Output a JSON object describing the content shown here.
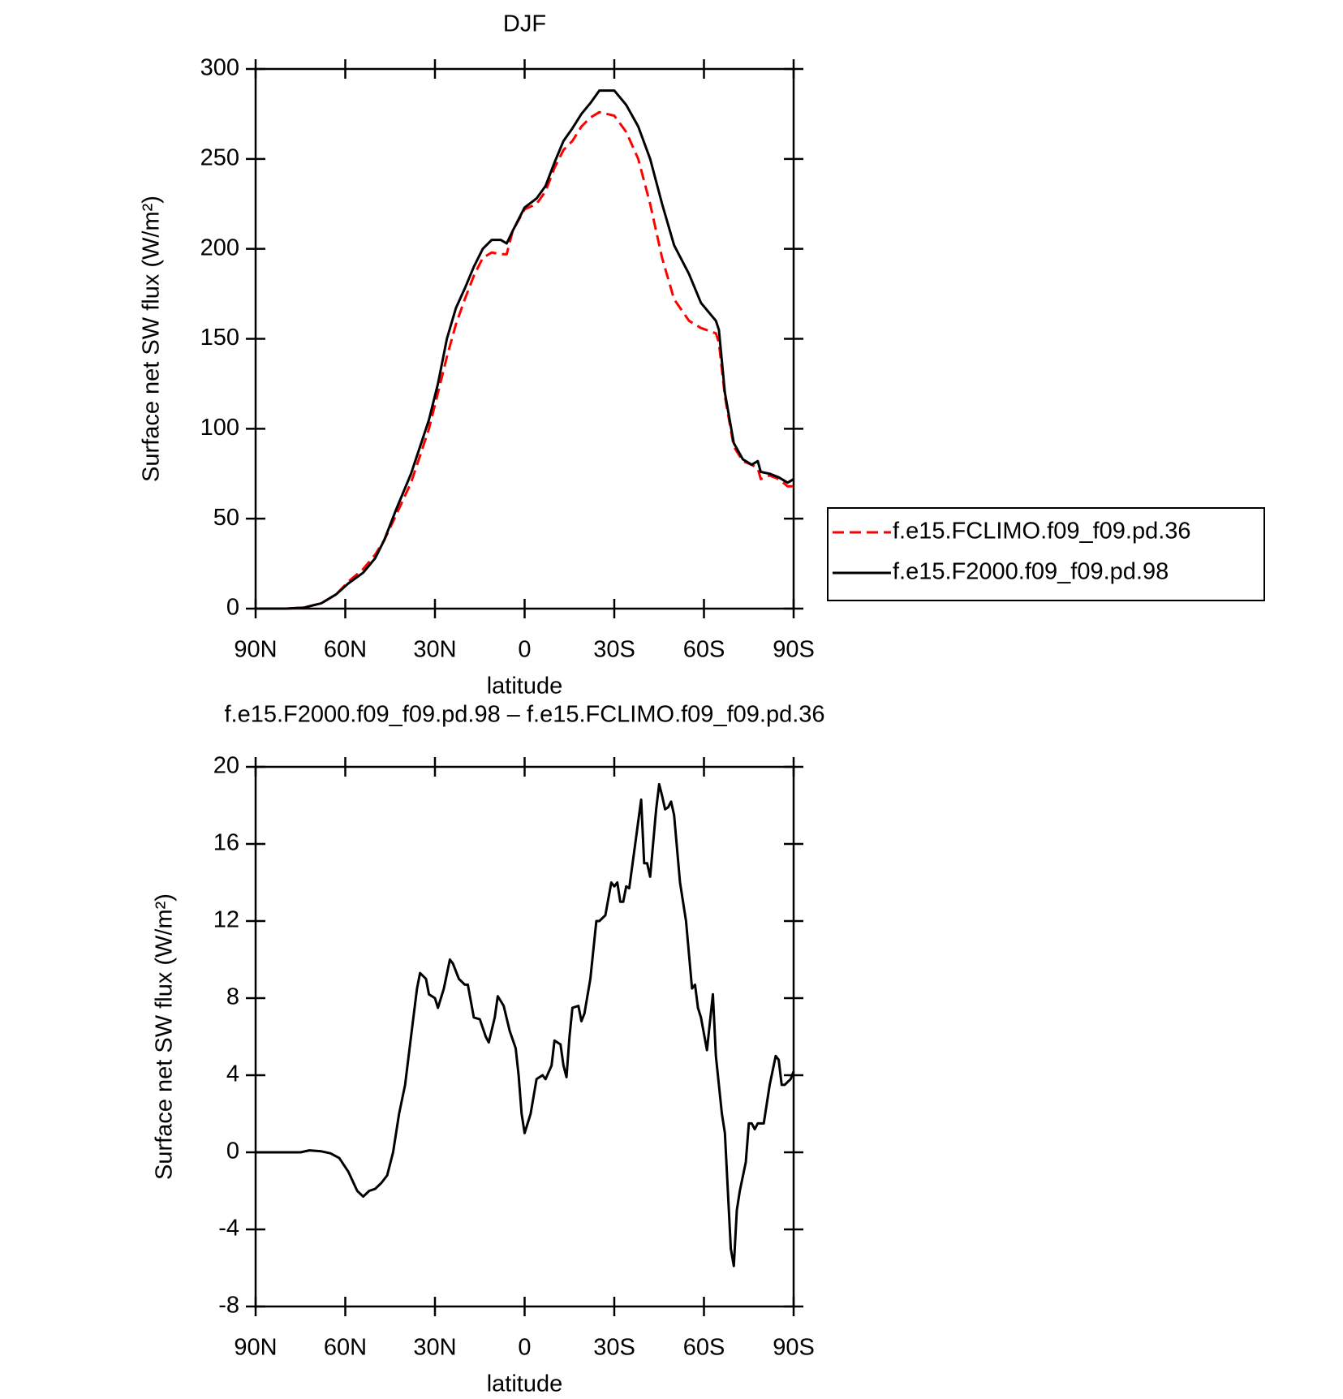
{
  "chart_data": [
    {
      "type": "line",
      "title": "DJF",
      "x_label": "latitude",
      "y_label": "Surface net SW flux (W/m²)",
      "x": [
        90,
        80,
        74,
        68,
        63,
        59,
        54,
        50,
        47,
        43,
        38,
        35,
        32,
        29,
        26,
        23,
        20,
        17,
        14,
        11,
        8,
        6,
        4,
        0,
        -4,
        -7,
        -10,
        -13,
        -16,
        -19,
        -22,
        -25,
        -30,
        -34,
        -38,
        -42,
        -46,
        -50,
        -55,
        -59,
        -64,
        -65,
        -67,
        -70,
        -73,
        -76,
        -78,
        -79,
        -82,
        -85,
        -88,
        -90
      ],
      "series": [
        {
          "name": "f.e15.FCLIMO.f09_f09.pd.36",
          "color": "#ff0000",
          "dashed": true,
          "values": [
            0,
            0,
            0.5,
            3,
            8,
            15,
            22,
            30,
            38,
            52,
            70,
            85,
            100,
            120,
            140,
            158,
            172,
            185,
            195,
            198,
            197,
            197,
            210,
            222,
            225,
            232,
            245,
            255,
            260,
            268,
            273,
            276,
            274,
            265,
            250,
            225,
            195,
            172,
            160,
            156,
            153,
            148,
            118,
            90,
            82,
            80,
            78,
            72,
            74,
            72,
            68,
            68
          ]
        },
        {
          "name": "f.e15.F2000.f09_f09.pd.98",
          "color": "#000000",
          "dashed": false,
          "values": [
            0,
            0,
            0.5,
            3,
            8,
            14,
            20,
            28,
            38,
            55,
            75,
            90,
            105,
            125,
            150,
            167,
            178,
            190,
            200,
            205,
            205,
            203,
            210,
            223,
            228,
            235,
            248,
            260,
            267,
            275,
            281,
            288,
            288,
            280,
            268,
            250,
            225,
            202,
            186,
            170,
            160,
            155,
            120,
            92,
            83,
            80,
            82,
            76,
            75,
            73,
            70,
            72
          ]
        }
      ],
      "xlim": [
        90,
        -90
      ],
      "xticks": [
        {
          "value": 90,
          "label": "90N"
        },
        {
          "value": 60,
          "label": "60N"
        },
        {
          "value": 30,
          "label": "30N"
        },
        0,
        {
          "value": -30,
          "label": "30S"
        },
        {
          "value": -60,
          "label": "60S"
        },
        {
          "value": -90,
          "label": "90S"
        }
      ],
      "ylim": [
        0,
        300
      ],
      "yticks": [
        0,
        50,
        100,
        150,
        200,
        250,
        300
      ],
      "legend": "right"
    },
    {
      "type": "line",
      "title": "f.e15.F2000.f09_f09.pd.98 – f.e15.FCLIMO.f09_f09.pd.36",
      "x_label": "latitude",
      "y_label": "Surface net SW flux (W/m²)",
      "x": [
        90,
        80,
        75,
        72,
        68,
        65,
        62,
        59,
        56,
        54,
        52,
        50,
        48,
        46,
        44,
        42,
        40,
        38,
        36,
        35,
        33,
        32,
        30,
        29,
        27,
        25,
        24,
        22,
        20,
        19,
        17,
        15,
        13,
        12,
        10,
        9,
        7,
        5,
        3,
        2,
        1,
        0,
        -2,
        -4,
        -6,
        -7,
        -9,
        -10,
        -12,
        -13,
        -14,
        -15,
        -16,
        -18,
        -19,
        -20,
        -22,
        -24,
        -25,
        -27,
        -29,
        -30,
        -31,
        -32,
        -33,
        -34,
        -35,
        -37,
        -39,
        -40,
        -41,
        -42,
        -44,
        -45,
        -46,
        -47,
        -48,
        -49,
        -50,
        -52,
        -54,
        -56,
        -57,
        -58,
        -59,
        -61,
        -63,
        -64,
        -66,
        -67,
        -69,
        -70,
        -71,
        -72,
        -74,
        -75,
        -76,
        -77,
        -78,
        -80,
        -82,
        -84,
        -85,
        -86,
        -87,
        -89,
        -90
      ],
      "color": "#000000",
      "values": [
        0,
        0,
        0,
        0.1,
        0.05,
        -0.05,
        -0.3,
        -1,
        -2,
        -2.3,
        -2,
        -1.9,
        -1.6,
        -1.2,
        0,
        2,
        3.5,
        6,
        8.5,
        9.3,
        9,
        8.2,
        8,
        7.5,
        8.5,
        10,
        9.8,
        9,
        8.7,
        8.7,
        7,
        6.9,
        6,
        5.7,
        7,
        8.1,
        7.6,
        6.3,
        5.4,
        4,
        2,
        1,
        2,
        3.8,
        4,
        3.8,
        4.5,
        5.8,
        5.6,
        4.5,
        3.9,
        6,
        7.5,
        7.6,
        6.8,
        7.2,
        9,
        12,
        12,
        12.3,
        14,
        13.8,
        14,
        13,
        13,
        13.8,
        13.7,
        16,
        18.3,
        15,
        15,
        14.3,
        17.8,
        19.1,
        18.5,
        17.8,
        17.9,
        18.2,
        17.5,
        14,
        12,
        8.5,
        8.7,
        7.5,
        7,
        5.3,
        8.2,
        5,
        2,
        1,
        -5,
        -5.9,
        -3,
        -2,
        -0.5,
        1.5,
        1.5,
        1.2,
        1.5,
        1.5,
        3.5,
        5,
        4.8,
        3.5,
        3.5,
        3.8,
        4.2
      ],
      "xlim": [
        90,
        -90
      ],
      "xticks": [
        {
          "value": 90,
          "label": "90N"
        },
        {
          "value": 60,
          "label": "60N"
        },
        {
          "value": 30,
          "label": "30N"
        },
        0,
        {
          "value": -30,
          "label": "30S"
        },
        {
          "value": -60,
          "label": "60S"
        },
        {
          "value": -90,
          "label": "90S"
        }
      ],
      "ylim": [
        -8,
        20
      ],
      "yticks": [
        -8,
        -4,
        0,
        4,
        8,
        12,
        16,
        20
      ]
    }
  ]
}
